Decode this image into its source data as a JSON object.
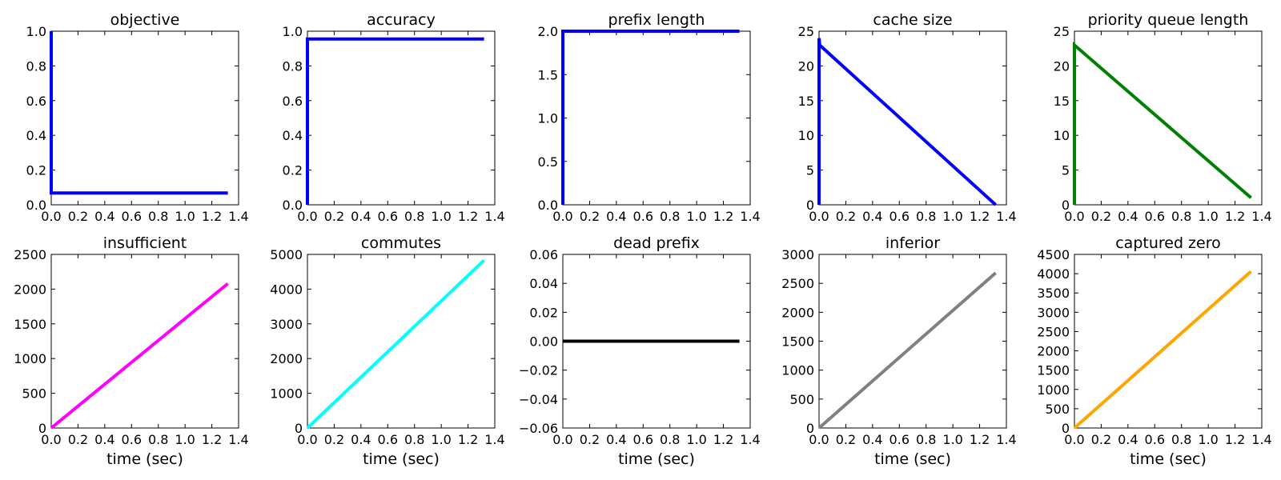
{
  "chart_data": [
    {
      "type": "line",
      "title": "objective",
      "xlabel": "",
      "ylabel": "",
      "xlim": [
        0,
        1.4
      ],
      "ylim": [
        0,
        1.0
      ],
      "xticks": [
        "0.0",
        "0.2",
        "0.4",
        "0.6",
        "0.8",
        "1.0",
        "1.2",
        "1.4"
      ],
      "yticks": [
        "0.0",
        "0.2",
        "0.4",
        "0.6",
        "0.8",
        "1.0"
      ],
      "series": [
        {
          "color": "#0000ff",
          "x": [
            0,
            0,
            1.32
          ],
          "y": [
            1.0,
            0.068,
            0.068
          ]
        }
      ]
    },
    {
      "type": "line",
      "title": "accuracy",
      "xlabel": "",
      "ylabel": "",
      "xlim": [
        0,
        1.4
      ],
      "ylim": [
        0,
        1.0
      ],
      "xticks": [
        "0.0",
        "0.2",
        "0.4",
        "0.6",
        "0.8",
        "1.0",
        "1.2",
        "1.4"
      ],
      "yticks": [
        "0.0",
        "0.2",
        "0.4",
        "0.6",
        "0.8",
        "1.0"
      ],
      "series": [
        {
          "color": "#0000ff",
          "x": [
            0,
            0,
            1.32
          ],
          "y": [
            0,
            0.955,
            0.955
          ]
        }
      ]
    },
    {
      "type": "line",
      "title": "prefix length",
      "xlabel": "",
      "ylabel": "",
      "xlim": [
        0,
        1.4
      ],
      "ylim": [
        0,
        2.0
      ],
      "xticks": [
        "0.0",
        "0.2",
        "0.4",
        "0.6",
        "0.8",
        "1.0",
        "1.2",
        "1.4"
      ],
      "yticks": [
        "0.0",
        "0.5",
        "1.0",
        "1.5",
        "2.0"
      ],
      "series": [
        {
          "color": "#0000ff",
          "x": [
            0,
            0,
            1.32
          ],
          "y": [
            0,
            2.0,
            2.0
          ]
        }
      ]
    },
    {
      "type": "line",
      "title": "cache size",
      "xlabel": "",
      "ylabel": "",
      "xlim": [
        0,
        1.4
      ],
      "ylim": [
        0,
        25
      ],
      "xticks": [
        "0.0",
        "0.2",
        "0.4",
        "0.6",
        "0.8",
        "1.0",
        "1.2",
        "1.4"
      ],
      "yticks": [
        "0",
        "5",
        "10",
        "15",
        "20",
        "25"
      ],
      "series": [
        {
          "color": "#0000ff",
          "x": [
            0,
            0,
            0.005,
            1.32
          ],
          "y": [
            0,
            24,
            23,
            0
          ]
        }
      ]
    },
    {
      "type": "line",
      "title": "priority queue length",
      "xlabel": "",
      "ylabel": "",
      "xlim": [
        0,
        1.4
      ],
      "ylim": [
        0,
        25
      ],
      "xticks": [
        "0.0",
        "0.2",
        "0.4",
        "0.6",
        "0.8",
        "1.0",
        "1.2",
        "1.4"
      ],
      "yticks": [
        "0",
        "5",
        "10",
        "15",
        "20",
        "25"
      ],
      "series": [
        {
          "color": "#008000",
          "x": [
            0,
            0,
            1.32
          ],
          "y": [
            0,
            23,
            1
          ]
        }
      ]
    },
    {
      "type": "line",
      "title": "insufficient",
      "xlabel": "time (sec)",
      "ylabel": "",
      "xlim": [
        0,
        1.4
      ],
      "ylim": [
        0,
        2500
      ],
      "xticks": [
        "0.0",
        "0.2",
        "0.4",
        "0.6",
        "0.8",
        "1.0",
        "1.2",
        "1.4"
      ],
      "yticks": [
        "0",
        "500",
        "1000",
        "1500",
        "2000",
        "2500"
      ],
      "series": [
        {
          "color": "#ff00ff",
          "x": [
            0,
            1.32
          ],
          "y": [
            0,
            2080
          ]
        }
      ]
    },
    {
      "type": "line",
      "title": "commutes",
      "xlabel": "time (sec)",
      "ylabel": "",
      "xlim": [
        0,
        1.4
      ],
      "ylim": [
        0,
        5000
      ],
      "xticks": [
        "0.0",
        "0.2",
        "0.4",
        "0.6",
        "0.8",
        "1.0",
        "1.2",
        "1.4"
      ],
      "yticks": [
        "0",
        "1000",
        "2000",
        "3000",
        "4000",
        "5000"
      ],
      "series": [
        {
          "color": "#00ffff",
          "x": [
            0,
            1.32
          ],
          "y": [
            0,
            4830
          ]
        }
      ]
    },
    {
      "type": "line",
      "title": "dead prefix",
      "xlabel": "time (sec)",
      "ylabel": "",
      "xlim": [
        0,
        1.4
      ],
      "ylim": [
        -0.06,
        0.06
      ],
      "xticks": [
        "0.0",
        "0.2",
        "0.4",
        "0.6",
        "0.8",
        "1.0",
        "1.2",
        "1.4"
      ],
      "yticks": [
        "−0.06",
        "−0.04",
        "−0.02",
        "0.00",
        "0.02",
        "0.04",
        "0.06"
      ],
      "series": [
        {
          "color": "#000000",
          "x": [
            0,
            1.32
          ],
          "y": [
            0,
            0
          ]
        }
      ]
    },
    {
      "type": "line",
      "title": "inferior",
      "xlabel": "time (sec)",
      "ylabel": "",
      "xlim": [
        0,
        1.4
      ],
      "ylim": [
        0,
        3000
      ],
      "xticks": [
        "0.0",
        "0.2",
        "0.4",
        "0.6",
        "0.8",
        "1.0",
        "1.2",
        "1.4"
      ],
      "yticks": [
        "0",
        "500",
        "1000",
        "1500",
        "2000",
        "2500",
        "3000"
      ],
      "series": [
        {
          "color": "#808080",
          "x": [
            0,
            1.32
          ],
          "y": [
            0,
            2680
          ]
        }
      ]
    },
    {
      "type": "line",
      "title": "captured zero",
      "xlabel": "time (sec)",
      "ylabel": "",
      "xlim": [
        0,
        1.4
      ],
      "ylim": [
        0,
        4500
      ],
      "xticks": [
        "0.0",
        "0.2",
        "0.4",
        "0.6",
        "0.8",
        "1.0",
        "1.2",
        "1.4"
      ],
      "yticks": [
        "0",
        "500",
        "1000",
        "1500",
        "2000",
        "2500",
        "3000",
        "3500",
        "4000",
        "4500"
      ],
      "series": [
        {
          "color": "#ffa500",
          "x": [
            0,
            1.32
          ],
          "y": [
            0,
            4060
          ]
        }
      ]
    }
  ]
}
